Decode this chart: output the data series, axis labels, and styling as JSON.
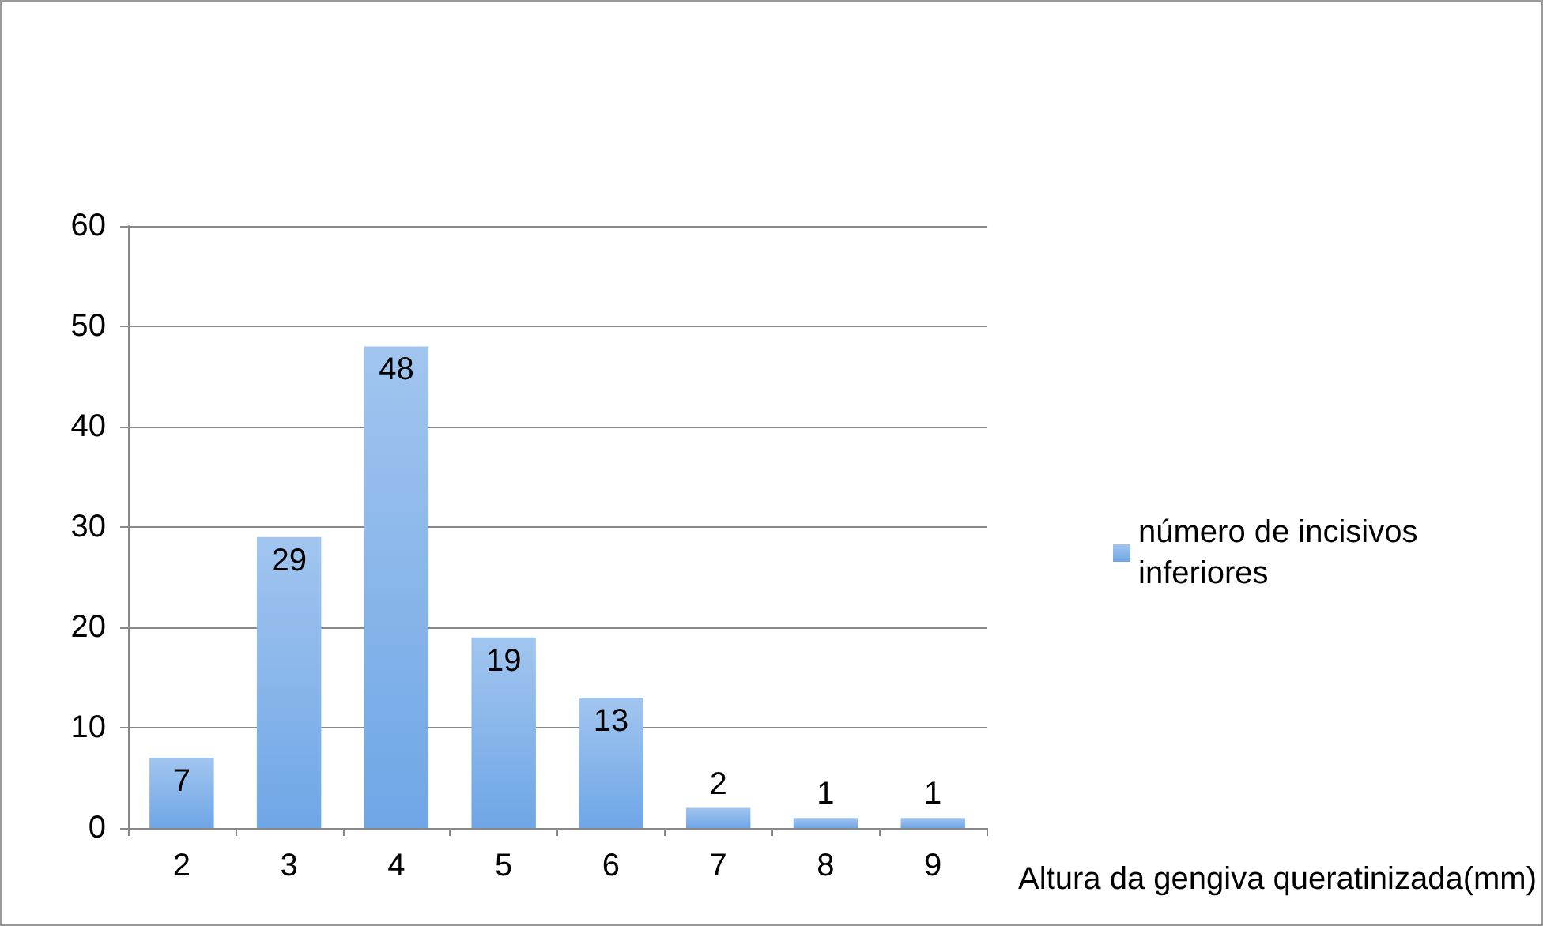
{
  "chart_data": {
    "type": "bar",
    "categories": [
      "2",
      "3",
      "4",
      "5",
      "6",
      "7",
      "8",
      "9"
    ],
    "series": [
      {
        "name": "número de incisivos inferiores",
        "color": "#6fa6e6",
        "values": [
          7,
          29,
          48,
          19,
          13,
          2,
          1,
          1
        ]
      }
    ],
    "xlabel": "Altura da gengiva queratinizada(mm)",
    "ylim": [
      0,
      60
    ],
    "yticks": [
      0,
      10,
      20,
      30,
      40,
      50,
      60
    ],
    "grid": "y",
    "legend": "right",
    "data_labels": true
  }
}
